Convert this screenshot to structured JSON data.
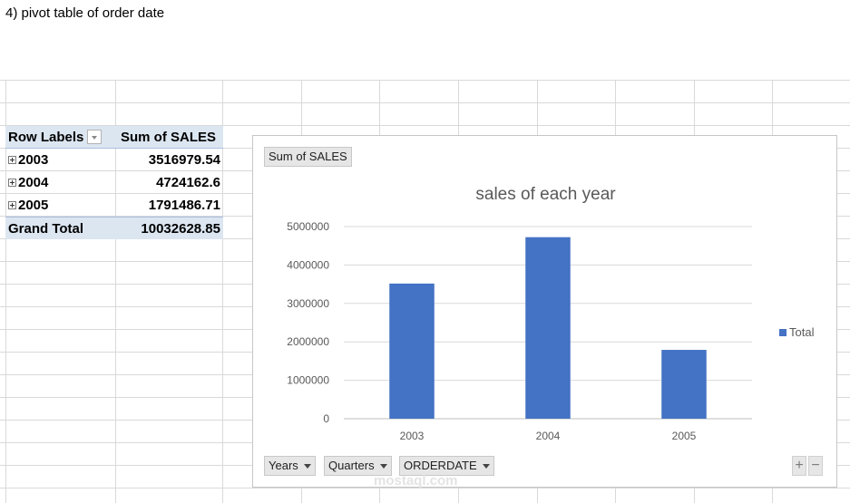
{
  "caption": "4) pivot table of order date",
  "pivot": {
    "header_label": "Row Labels",
    "header_value": "Sum of SALES",
    "rows": [
      {
        "label": "2003",
        "value": "3516979.54"
      },
      {
        "label": "2004",
        "value": "4724162.6"
      },
      {
        "label": "2005",
        "value": "1791486.71"
      }
    ],
    "total_label": "Grand Total",
    "total_value": "10032628.85"
  },
  "chart": {
    "value_button": "Sum of SALES",
    "axis_buttons": [
      "Years",
      "Quarters",
      "ORDERDATE"
    ],
    "zoom_in": "+",
    "zoom_out": "−",
    "bar_color": "#4472c4"
  },
  "chart_data": {
    "type": "bar",
    "title": "sales of each year",
    "categories": [
      "2003",
      "2004",
      "2005"
    ],
    "series": [
      {
        "name": "Total",
        "values": [
          3516979.54,
          4724162.6,
          1791486.71
        ]
      }
    ],
    "ylim": [
      0,
      5000000
    ],
    "yticks": [
      0,
      1000000,
      2000000,
      3000000,
      4000000,
      5000000
    ],
    "ytick_labels": [
      "0",
      "1000000",
      "2000000",
      "3000000",
      "4000000",
      "5000000"
    ],
    "grid": true,
    "legend": "right"
  },
  "watermark": "mostaql.com"
}
